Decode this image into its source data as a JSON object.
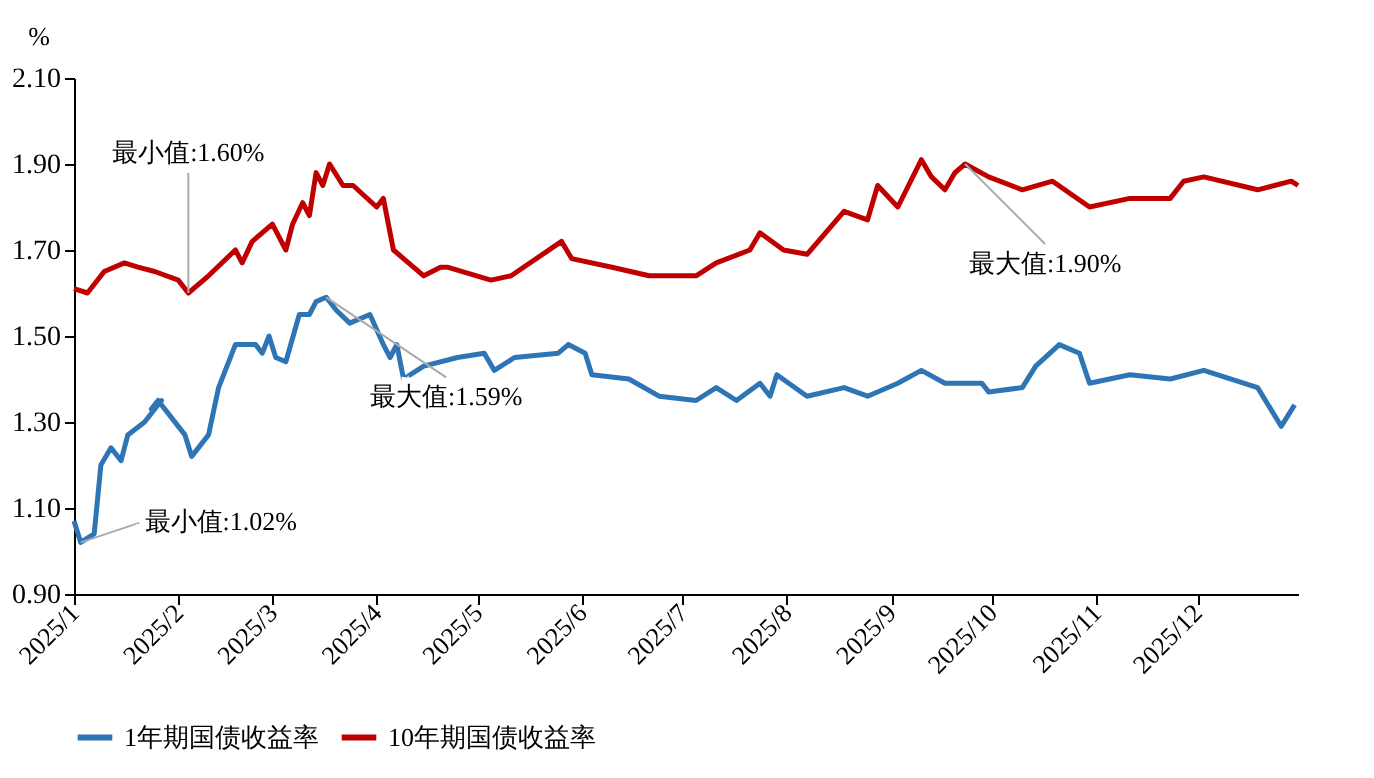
{
  "chart_data": {
    "type": "line",
    "ylabel": "%",
    "ylim": [
      0.9,
      2.1
    ],
    "yticks": [
      {
        "value": 0.9,
        "label": "0.90"
      },
      {
        "value": 1.1,
        "label": "1.10"
      },
      {
        "value": 1.3,
        "label": "1.30"
      },
      {
        "value": 1.5,
        "label": "1.50"
      },
      {
        "value": 1.7,
        "label": "1.70"
      },
      {
        "value": 1.9,
        "label": "1.90"
      },
      {
        "value": 2.1,
        "label": "2.10"
      }
    ],
    "xlim": [
      "2025-01-01",
      "2025-12-31"
    ],
    "xticks": [
      {
        "value": "2025-01-01",
        "label": "2025/1"
      },
      {
        "value": "2025-02-01",
        "label": "2025/2"
      },
      {
        "value": "2025-03-01",
        "label": "2025/3"
      },
      {
        "value": "2025-04-01",
        "label": "2025/4"
      },
      {
        "value": "2025-05-01",
        "label": "2025/5"
      },
      {
        "value": "2025-06-01",
        "label": "2025/6"
      },
      {
        "value": "2025-07-01",
        "label": "2025/7"
      },
      {
        "value": "2025-08-01",
        "label": "2025/8"
      },
      {
        "value": "2025-09-01",
        "label": "2025/9"
      },
      {
        "value": "2025-10-01",
        "label": "2025/10"
      },
      {
        "value": "2025-11-01",
        "label": "2025/11"
      },
      {
        "value": "2025-12-01",
        "label": "2025/12"
      }
    ],
    "grid": false,
    "legend": "bottom",
    "marker": "none",
    "line_style": "solid",
    "series": [
      {
        "name": "1年期国债收益率",
        "color": "#2e75b6",
        "x": [
          "2025-01-01",
          "2025-01-03",
          "2025-01-07",
          "2025-01-09",
          "2025-01-12",
          "2025-01-15",
          "2025-01-17",
          "2025-01-22",
          "2025-01-27",
          "2025-01-24",
          "2025-01-26",
          "2025-02-03",
          "2025-02-05",
          "2025-02-10",
          "2025-02-13",
          "2025-02-18",
          "2025-02-24",
          "2025-02-26",
          "2025-02-28",
          "2025-03-02",
          "2025-03-05",
          "2025-03-09",
          "2025-03-12",
          "2025-03-14",
          "2025-03-17",
          "2025-03-20",
          "2025-03-24",
          "2025-03-30",
          "2025-04-03",
          "2025-04-05",
          "2025-04-07",
          "2025-04-09",
          "2025-04-15",
          "2025-04-25",
          "2025-05-03",
          "2025-05-06",
          "2025-05-12",
          "2025-05-25",
          "2025-05-28",
          "2025-06-02",
          "2025-06-04",
          "2025-06-15",
          "2025-06-24",
          "2025-07-05",
          "2025-07-11",
          "2025-07-17",
          "2025-07-24",
          "2025-07-27",
          "2025-07-29",
          "2025-08-07",
          "2025-08-18",
          "2025-08-25",
          "2025-09-03",
          "2025-09-10",
          "2025-09-17",
          "2025-09-28",
          "2025-09-30",
          "2025-10-10",
          "2025-10-14",
          "2025-10-21",
          "2025-10-27",
          "2025-10-30",
          "2025-11-11",
          "2025-11-23",
          "2025-12-03",
          "2025-12-19",
          "2025-12-26",
          "2025-12-30"
        ],
        "values": [
          1.07,
          1.02,
          1.04,
          1.2,
          1.24,
          1.21,
          1.27,
          1.3,
          1.35,
          1.33,
          1.35,
          1.27,
          1.22,
          1.27,
          1.38,
          1.48,
          1.48,
          1.46,
          1.5,
          1.45,
          1.44,
          1.55,
          1.55,
          1.58,
          1.59,
          1.56,
          1.53,
          1.55,
          1.48,
          1.45,
          1.48,
          1.4,
          1.43,
          1.45,
          1.46,
          1.42,
          1.45,
          1.46,
          1.48,
          1.46,
          1.41,
          1.4,
          1.36,
          1.35,
          1.38,
          1.35,
          1.39,
          1.36,
          1.41,
          1.36,
          1.38,
          1.36,
          1.39,
          1.42,
          1.39,
          1.39,
          1.37,
          1.38,
          1.43,
          1.48,
          1.46,
          1.39,
          1.41,
          1.4,
          1.42,
          1.38,
          1.29,
          1.34
        ]
      },
      {
        "name": "10年期国债收益率",
        "color": "#c00000",
        "x": [
          "2025-01-01",
          "2025-01-05",
          "2025-01-10",
          "2025-01-16",
          "2025-01-20",
          "2025-01-25",
          "2025-02-01",
          "2025-02-04",
          "2025-02-10",
          "2025-02-18",
          "2025-02-20",
          "2025-02-23",
          "2025-03-01",
          "2025-03-05",
          "2025-03-07",
          "2025-03-10",
          "2025-03-12",
          "2025-03-14",
          "2025-03-16",
          "2025-03-18",
          "2025-03-22",
          "2025-03-25",
          "2025-04-01",
          "2025-04-03",
          "2025-04-06",
          "2025-04-15",
          "2025-04-20",
          "2025-04-22",
          "2025-05-05",
          "2025-05-11",
          "2025-05-26",
          "2025-05-29",
          "2025-06-10",
          "2025-06-21",
          "2025-07-05",
          "2025-07-11",
          "2025-07-21",
          "2025-07-24",
          "2025-07-31",
          "2025-08-07",
          "2025-08-18",
          "2025-08-25",
          "2025-08-28",
          "2025-09-03",
          "2025-09-10",
          "2025-09-13",
          "2025-09-17",
          "2025-09-20",
          "2025-09-23",
          "2025-09-30",
          "2025-10-10",
          "2025-10-19",
          "2025-10-30",
          "2025-11-11",
          "2025-11-23",
          "2025-11-27",
          "2025-12-03",
          "2025-12-19",
          "2025-12-29",
          "2025-12-31"
        ],
        "values": [
          1.61,
          1.6,
          1.65,
          1.67,
          1.66,
          1.65,
          1.63,
          1.6,
          1.64,
          1.7,
          1.67,
          1.72,
          1.76,
          1.7,
          1.76,
          1.81,
          1.78,
          1.88,
          1.85,
          1.9,
          1.85,
          1.85,
          1.8,
          1.82,
          1.7,
          1.64,
          1.66,
          1.66,
          1.63,
          1.64,
          1.72,
          1.68,
          1.66,
          1.64,
          1.64,
          1.67,
          1.7,
          1.74,
          1.7,
          1.69,
          1.79,
          1.77,
          1.85,
          1.8,
          1.91,
          1.87,
          1.84,
          1.88,
          1.9,
          1.87,
          1.84,
          1.86,
          1.8,
          1.82,
          1.82,
          1.86,
          1.87,
          1.84,
          1.86,
          1.85
        ]
      }
    ],
    "annotations": [
      {
        "text": "最小值:1.60%",
        "x": "2025-02-04",
        "y": 1.6
      },
      {
        "text": "最大值:1.59%",
        "x": "2025-03-17",
        "y": 1.59
      },
      {
        "text": "最小值:1.02%",
        "x": "2025-01-03",
        "y": 1.02
      },
      {
        "text": "最大值:1.90%",
        "x": "2025-09-23",
        "y": 1.9
      }
    ]
  }
}
